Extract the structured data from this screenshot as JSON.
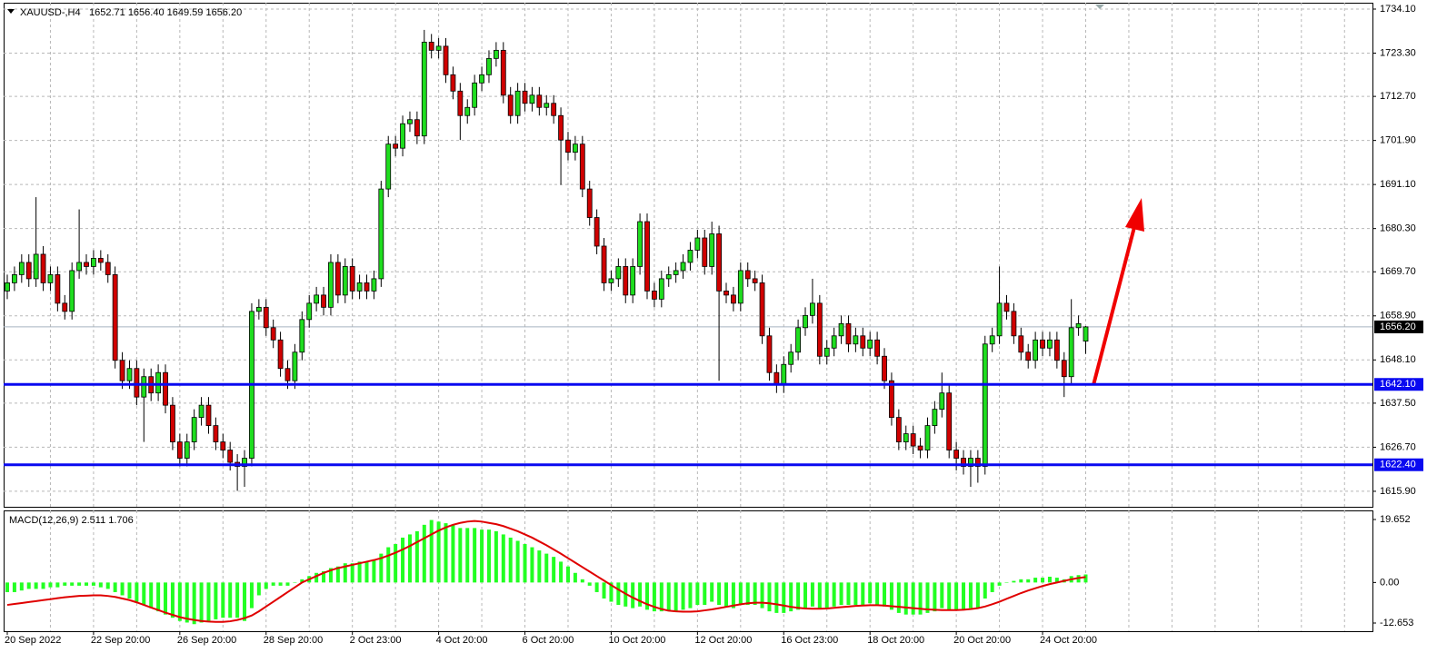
{
  "chart_data": [
    {
      "type": "candlestick",
      "title": "XAUUSD-,H4",
      "subtitle": "1652.71 1656.40 1649.59 1656.20",
      "up_color": "#1fdd1f",
      "down_color": "#d00000",
      "grid": true,
      "categories": [
        "20 Sep 2022",
        null,
        null,
        null,
        null,
        null,
        null,
        null,
        null,
        null,
        null,
        null,
        "22 Sep 20:00",
        null,
        null,
        null,
        null,
        null,
        null,
        null,
        null,
        null,
        null,
        null,
        "26 Sep 20:00",
        null,
        null,
        null,
        null,
        null,
        null,
        null,
        null,
        null,
        null,
        null,
        "28 Sep 20:00",
        null,
        null,
        null,
        null,
        null,
        null,
        null,
        null,
        null,
        null,
        null,
        "2 Oct 23:00",
        null,
        null,
        null,
        null,
        null,
        null,
        null,
        null,
        null,
        null,
        null,
        "4 Oct 20:00",
        null,
        null,
        null,
        null,
        null,
        null,
        null,
        null,
        null,
        null,
        null,
        "6 Oct 20:00",
        null,
        null,
        null,
        null,
        null,
        null,
        null,
        null,
        null,
        null,
        null,
        "10 Oct 20:00",
        null,
        null,
        null,
        null,
        null,
        null,
        null,
        null,
        null,
        null,
        null,
        "12 Oct 20:00",
        null,
        null,
        null,
        null,
        null,
        null,
        null,
        null,
        null,
        null,
        null,
        "16 Oct 23:00",
        null,
        null,
        null,
        null,
        null,
        null,
        null,
        null,
        null,
        null,
        null,
        "18 Oct 20:00",
        null,
        null,
        null,
        null,
        null,
        null,
        null,
        null,
        null,
        null,
        null,
        "20 Oct 20:00",
        null,
        null,
        null,
        null,
        null,
        null,
        null,
        null,
        null,
        null,
        null,
        "24 Oct 20:00",
        null,
        null,
        null,
        null,
        null,
        null
      ],
      "open": [
        1665,
        1667,
        1669,
        1672,
        1668,
        1674,
        1667,
        1669,
        1662,
        1660,
        1670,
        1672,
        1671,
        1673,
        1672,
        1669,
        1648,
        1643,
        1646,
        1639,
        1644,
        1640,
        1645,
        1637,
        1628,
        1624,
        1628,
        1634,
        1637,
        1632,
        1628,
        1626,
        1623,
        1622,
        1624,
        1660,
        1661,
        1656,
        1653,
        1646,
        1643,
        1650,
        1658,
        1662,
        1664,
        1661,
        1672,
        1664,
        1671,
        1665,
        1667,
        1665,
        1668,
        1690,
        1701,
        1700,
        1706,
        1707,
        1703,
        1726,
        1724,
        1725,
        1718,
        1714,
        1708,
        1710,
        1716,
        1718,
        1722,
        1724,
        1713,
        1708,
        1714,
        1711,
        1713,
        1710,
        1711,
        1708,
        1702,
        1699,
        1701,
        1690,
        1683,
        1676,
        1667,
        1668,
        1671,
        1664,
        1671,
        1682,
        1665,
        1663,
        1668,
        1669,
        1670,
        1672,
        1675,
        1678,
        1671,
        1679,
        1665,
        1664,
        1662,
        1670,
        1668,
        1667,
        1654,
        1645,
        1642,
        1647,
        1650,
        1656,
        1659,
        1662,
        1649,
        1651,
        1654,
        1657,
        1652,
        1654,
        1651,
        1653,
        1649,
        1643,
        1634,
        1628,
        1630,
        1627,
        1626,
        1632,
        1636,
        1640,
        1626,
        1624,
        1622,
        1624,
        1622,
        1652,
        1654,
        1662,
        1660,
        1654,
        1650,
        1648,
        1653,
        1651,
        1653,
        1648,
        1644,
        1656,
        1652.71
      ],
      "high": [
        1669,
        1671,
        1674,
        1674,
        1688,
        1676,
        1671,
        1671,
        1664,
        1672,
        1685,
        1674,
        1675,
        1675,
        1674,
        1671,
        1650,
        1648,
        1648,
        1646,
        1646,
        1647,
        1647,
        1639,
        1630,
        1630,
        1636,
        1639,
        1639,
        1634,
        1630,
        1628,
        1625,
        1626,
        1662,
        1663,
        1663,
        1658,
        1655,
        1648,
        1652,
        1660,
        1664,
        1666,
        1666,
        1674,
        1674,
        1673,
        1673,
        1669,
        1669,
        1670,
        1692,
        1703,
        1703,
        1708,
        1709,
        1709,
        1729,
        1728,
        1727,
        1727,
        1720,
        1716,
        1712,
        1718,
        1720,
        1724,
        1726,
        1726,
        1715,
        1716,
        1716,
        1715,
        1715,
        1713,
        1713,
        1710,
        1704,
        1703,
        1703,
        1692,
        1685,
        1678,
        1670,
        1673,
        1673,
        1673,
        1684,
        1684,
        1667,
        1670,
        1671,
        1672,
        1674,
        1677,
        1680,
        1680,
        1682,
        1681,
        1667,
        1666,
        1672,
        1672,
        1670,
        1669,
        1656,
        1647,
        1649,
        1652,
        1658,
        1661,
        1668,
        1664,
        1653,
        1656,
        1659,
        1659,
        1656,
        1656,
        1655,
        1655,
        1651,
        1645,
        1636,
        1632,
        1632,
        1629,
        1634,
        1638,
        1645,
        1642,
        1628,
        1626,
        1626,
        1626,
        1654,
        1656,
        1671,
        1664,
        1662,
        1656,
        1652,
        1655,
        1655,
        1655,
        1655,
        1650,
        1663,
        1659,
        1656.4
      ],
      "low": [
        1663,
        1665,
        1667,
        1666,
        1666,
        1665,
        1665,
        1660,
        1658,
        1658,
        1668,
        1669,
        1669,
        1670,
        1667,
        1646,
        1641,
        1641,
        1637,
        1628,
        1638,
        1638,
        1635,
        1626,
        1622,
        1622,
        1626,
        1632,
        1630,
        1626,
        1624,
        1621,
        1616,
        1617,
        1622,
        1658,
        1654,
        1651,
        1644,
        1641,
        1641,
        1648,
        1656,
        1660,
        1659,
        1659,
        1662,
        1662,
        1663,
        1663,
        1663,
        1663,
        1666,
        1688,
        1698,
        1698,
        1704,
        1701,
        1701,
        1722,
        1722,
        1716,
        1712,
        1702,
        1706,
        1708,
        1714,
        1716,
        1720,
        1711,
        1706,
        1706,
        1709,
        1709,
        1708,
        1708,
        1706,
        1691,
        1697,
        1697,
        1688,
        1681,
        1674,
        1665,
        1665,
        1666,
        1662,
        1662,
        1669,
        1663,
        1661,
        1661,
        1666,
        1667,
        1668,
        1670,
        1673,
        1669,
        1669,
        1643,
        1662,
        1660,
        1660,
        1666,
        1665,
        1652,
        1643,
        1640,
        1640,
        1645,
        1648,
        1654,
        1657,
        1647,
        1647,
        1649,
        1652,
        1650,
        1650,
        1649,
        1649,
        1647,
        1641,
        1632,
        1626,
        1626,
        1625,
        1624,
        1624,
        1630,
        1634,
        1624,
        1621,
        1620,
        1617,
        1618,
        1620,
        1650,
        1652,
        1658,
        1652,
        1648,
        1646,
        1646,
        1649,
        1649,
        1646,
        1639,
        1642,
        1654,
        1649.59
      ],
      "close": [
        1667,
        1669,
        1672,
        1668,
        1674,
        1667,
        1669,
        1662,
        1660,
        1670,
        1672,
        1671,
        1673,
        1672,
        1669,
        1648,
        1643,
        1646,
        1639,
        1644,
        1640,
        1645,
        1637,
        1628,
        1624,
        1628,
        1634,
        1637,
        1632,
        1628,
        1626,
        1623,
        1622,
        1624,
        1660,
        1661,
        1656,
        1653,
        1646,
        1643,
        1650,
        1658,
        1662,
        1664,
        1661,
        1672,
        1664,
        1671,
        1665,
        1667,
        1665,
        1668,
        1690,
        1701,
        1700,
        1706,
        1707,
        1703,
        1726,
        1724,
        1725,
        1718,
        1714,
        1708,
        1710,
        1716,
        1718,
        1722,
        1724,
        1713,
        1708,
        1714,
        1711,
        1713,
        1710,
        1711,
        1708,
        1702,
        1699,
        1701,
        1690,
        1683,
        1676,
        1667,
        1668,
        1671,
        1664,
        1671,
        1682,
        1665,
        1663,
        1668,
        1669,
        1670,
        1672,
        1675,
        1678,
        1671,
        1679,
        1665,
        1664,
        1662,
        1670,
        1668,
        1667,
        1654,
        1645,
        1642,
        1647,
        1650,
        1656,
        1659,
        1662,
        1649,
        1651,
        1654,
        1657,
        1652,
        1654,
        1651,
        1653,
        1649,
        1643,
        1634,
        1628,
        1630,
        1627,
        1626,
        1632,
        1636,
        1640,
        1626,
        1624,
        1622,
        1624,
        1622,
        1652,
        1654,
        1662,
        1660,
        1654,
        1650,
        1648,
        1653,
        1651,
        1653,
        1648,
        1644,
        1656,
        1657,
        1656.2
      ],
      "ylim": [
        1612.1,
        1735.66
      ],
      "yticks": [
        {
          "value": 1734.1,
          "label": "1734.10"
        },
        {
          "value": 1723.3,
          "label": "1723.30"
        },
        {
          "value": 1712.7,
          "label": "1712.70"
        },
        {
          "value": 1701.9,
          "label": "1701.90"
        },
        {
          "value": 1691.1,
          "label": "1691.10"
        },
        {
          "value": 1680.3,
          "label": "1680.30"
        },
        {
          "value": 1669.7,
          "label": "1669.70"
        },
        {
          "value": 1658.9,
          "label": "1658.90"
        },
        {
          "value": 1648.1,
          "label": "1648.10"
        },
        {
          "value": 1637.5,
          "label": "1637.50"
        },
        {
          "value": 1626.7,
          "label": "1626.70"
        },
        {
          "value": 1615.9,
          "label": "1615.90"
        }
      ],
      "hlines": [
        {
          "value": 1642.1,
          "label": "1642.10",
          "color": "#0a0af0"
        },
        {
          "value": 1622.4,
          "label": "1622.40",
          "color": "#0a0af0"
        }
      ],
      "last_price": {
        "value": 1656.2,
        "label": "1656.20",
        "color": "#000000"
      }
    },
    {
      "type": "macd",
      "title": "MACD(12,26,9) 2.511 1.706",
      "series": [
        {
          "type": "bar",
          "color": "#22ff22",
          "values": [
            -3,
            -3,
            -2.5,
            -2,
            -2,
            -2,
            -1.5,
            -1.5,
            -1,
            -1,
            -1,
            -1,
            -1,
            -1.5,
            -2,
            -3,
            -4,
            -5,
            -6,
            -7,
            -8,
            -9,
            -10,
            -11,
            -12,
            -12.5,
            -13,
            -12.5,
            -12,
            -11.5,
            -11,
            -11,
            -11,
            -12,
            -8,
            -4,
            -2,
            -1,
            -1,
            -1,
            0,
            1,
            2,
            3,
            3.5,
            4.5,
            5,
            6,
            6,
            6.5,
            6.5,
            7,
            9,
            11,
            12,
            14,
            15,
            16,
            18,
            19.5,
            19,
            18.5,
            18,
            17,
            17,
            17,
            16.5,
            16.5,
            16,
            15,
            14,
            13,
            12,
            11,
            10,
            9,
            8,
            6.5,
            5,
            3,
            1,
            -1,
            -3,
            -5,
            -6,
            -7,
            -7.5,
            -8,
            -7.5,
            -8.5,
            -9,
            -9,
            -9,
            -9,
            -8.5,
            -8,
            -7,
            -7,
            -6,
            -7,
            -7.5,
            -8,
            -7,
            -7,
            -7,
            -8,
            -9,
            -9.5,
            -9.5,
            -9,
            -8.5,
            -8,
            -7.5,
            -8,
            -8,
            -7.5,
            -7,
            -7,
            -7,
            -7,
            -6.5,
            -7,
            -7.5,
            -8.5,
            -9.5,
            -10,
            -10,
            -10,
            -9.5,
            -9,
            -8,
            -8.5,
            -8.5,
            -8.5,
            -8,
            -8,
            -5,
            -3,
            -1,
            0,
            0.5,
            1,
            1,
            1.5,
            1.5,
            1.8,
            1.5,
            1,
            2,
            2.3,
            2.511
          ]
        },
        {
          "type": "line",
          "color": "#e00000",
          "values": [
            -7,
            -6.7,
            -6.4,
            -6.1,
            -5.8,
            -5.5,
            -5.2,
            -4.9,
            -4.6,
            -4.4,
            -4.2,
            -4.1,
            -4,
            -4,
            -4.2,
            -4.5,
            -5,
            -5.5,
            -6.2,
            -7,
            -7.8,
            -8.6,
            -9.4,
            -10.1,
            -10.8,
            -11.3,
            -11.7,
            -12,
            -12.2,
            -12.3,
            -12.3,
            -12.1,
            -11.7,
            -11.1,
            -10.3,
            -9,
            -7.5,
            -6,
            -4.5,
            -3,
            -1.5,
            0,
            1,
            2,
            3,
            3.8,
            4.5,
            5,
            5.5,
            6,
            6.5,
            7,
            7.6,
            8.4,
            9.3,
            10.3,
            11.4,
            12.6,
            13.8,
            15,
            16.2,
            17.2,
            18,
            18.6,
            19,
            19.2,
            19,
            18.6,
            18.2,
            17.6,
            16.8,
            16,
            15,
            14,
            12.8,
            11.6,
            10.3,
            9,
            7.6,
            6.2,
            4.8,
            3.4,
            2,
            0.6,
            -0.8,
            -2.2,
            -3.5,
            -4.7,
            -5.8,
            -6.8,
            -7.6,
            -8.3,
            -8.8,
            -9,
            -9.1,
            -9.1,
            -9,
            -8.7,
            -8.4,
            -8,
            -7.6,
            -7.2,
            -6.8,
            -6.5,
            -6.3,
            -6.3,
            -6.5,
            -6.8,
            -7.2,
            -7.6,
            -7.9,
            -8.1,
            -8.2,
            -8.2,
            -8.1,
            -7.9,
            -7.7,
            -7.5,
            -7.3,
            -7.2,
            -7.1,
            -7.1,
            -7.2,
            -7.4,
            -7.6,
            -7.8,
            -8,
            -8.2,
            -8.4,
            -8.5,
            -8.6,
            -8.6,
            -8.6,
            -8.5,
            -8.3,
            -8,
            -7.5,
            -6.8,
            -6,
            -5.1,
            -4.2,
            -3.3,
            -2.5,
            -1.8,
            -1.1,
            -0.5,
            0,
            0.5,
            1,
            1.4,
            1.706
          ]
        }
      ],
      "ylim": [
        -15.2,
        22.49
      ],
      "yticks": [
        19.652,
        {
          "value": 0,
          "label": "0.00"
        },
        -12.653
      ]
    }
  ]
}
